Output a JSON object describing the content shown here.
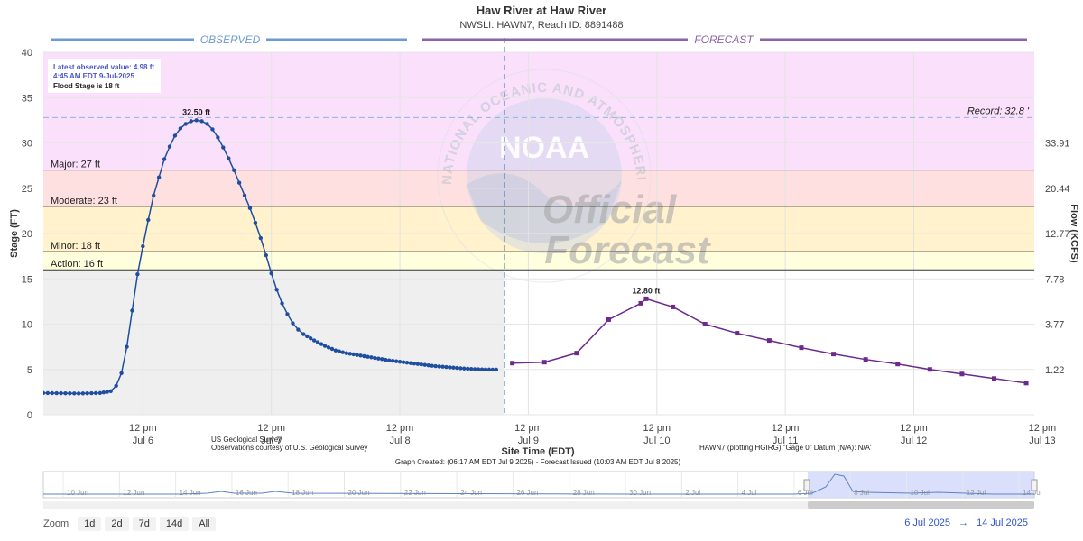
{
  "chart_data": {
    "type": "line",
    "title": "Haw River at Haw River",
    "subtitle": "NWSLI: HAWN7, Reach ID: 8891488",
    "ylabel": "Stage (FT)",
    "y2label": "Flow (KCFS)",
    "xlabel": "Site Time (EDT)",
    "ylim": [
      0,
      40
    ],
    "yticks": [
      0,
      5,
      10,
      15,
      20,
      25,
      30,
      35,
      40
    ],
    "x_range_hours": [
      -6.6,
      178.5
    ],
    "x_origin": "2025-07-06T00:00",
    "xticks": [
      {
        "hour": 12,
        "line1": "12 pm",
        "line2": "Jul 6"
      },
      {
        "hour": 36,
        "line1": "12 pm",
        "line2": "Jul 7"
      },
      {
        "hour": 60,
        "line1": "12 pm",
        "line2": "Jul 8"
      },
      {
        "hour": 84,
        "line1": "12 pm",
        "line2": "Jul 9"
      },
      {
        "hour": 108,
        "line1": "12 pm",
        "line2": "Jul 10"
      },
      {
        "hour": 132,
        "line1": "12 pm",
        "line2": "Jul 11"
      },
      {
        "hour": 156,
        "line1": "12 pm",
        "line2": "Jul 12"
      },
      {
        "hour": 180,
        "line1": "12 pm",
        "line2": "Jul 13"
      }
    ],
    "flow_ticks": [
      {
        "stage": 5,
        "label": "1.22"
      },
      {
        "stage": 10,
        "label": "3.77"
      },
      {
        "stage": 15,
        "label": "7.78"
      },
      {
        "stage": 20,
        "label": "12.77"
      },
      {
        "stage": 25,
        "label": "20.44"
      },
      {
        "stage": 30,
        "label": "33.91"
      }
    ],
    "bands": [
      {
        "name": "action-band",
        "from": 16,
        "to": 18,
        "color": "#ffffdd"
      },
      {
        "name": "minor-band",
        "from": 18,
        "to": 23,
        "color": "#fff2cc"
      },
      {
        "name": "moderate-band",
        "from": 23,
        "to": 27,
        "color": "#ffe0e0"
      },
      {
        "name": "major-band",
        "from": 27,
        "to": 40,
        "color": "#fbe0fb"
      }
    ],
    "thresholds": [
      {
        "label": "Action: 16 ft",
        "value": 16
      },
      {
        "label": "Minor: 18 ft",
        "value": 18
      },
      {
        "label": "Moderate: 23 ft",
        "value": 23
      },
      {
        "label": "Major: 27 ft",
        "value": 27
      }
    ],
    "record": {
      "label": "Record: 32.8 '",
      "value": 32.8
    },
    "now_hour": 79.5,
    "observed_label": "OBSERVED",
    "forecast_label": "FORECAST",
    "series": [
      {
        "name": "observed",
        "color": "#1f4e9e",
        "points": [
          [
            -6.6,
            2.4
          ],
          [
            0,
            2.35
          ],
          [
            4,
            2.4
          ],
          [
            6,
            2.6
          ],
          [
            7,
            3.2
          ],
          [
            8,
            4.6
          ],
          [
            9,
            7.5
          ],
          [
            10,
            11.5
          ],
          [
            11,
            15.5
          ],
          [
            12,
            18.6
          ],
          [
            13,
            21.5
          ],
          [
            14,
            24.2
          ],
          [
            15,
            26.2
          ],
          [
            16,
            28.2
          ],
          [
            17,
            29.6
          ],
          [
            18,
            30.8
          ],
          [
            19,
            31.6
          ],
          [
            20,
            32.1
          ],
          [
            21,
            32.4
          ],
          [
            22,
            32.5
          ],
          [
            23,
            32.4
          ],
          [
            24,
            32.1
          ],
          [
            25,
            31.5
          ],
          [
            26,
            30.6
          ],
          [
            27,
            29.5
          ],
          [
            28,
            28.3
          ],
          [
            29,
            27.0
          ],
          [
            30,
            25.6
          ],
          [
            31,
            24.2
          ],
          [
            32,
            22.8
          ],
          [
            33,
            21.2
          ],
          [
            34,
            19.5
          ],
          [
            35,
            17.6
          ],
          [
            36,
            15.6
          ],
          [
            37,
            13.8
          ],
          [
            38,
            12.3
          ],
          [
            39,
            11.1
          ],
          [
            40,
            10.1
          ],
          [
            41,
            9.4
          ],
          [
            42,
            8.9
          ],
          [
            44,
            8.2
          ],
          [
            46,
            7.6
          ],
          [
            48,
            7.1
          ],
          [
            50,
            6.8
          ],
          [
            52,
            6.6
          ],
          [
            54,
            6.4
          ],
          [
            56,
            6.2
          ],
          [
            58,
            6.0
          ],
          [
            60,
            5.85
          ],
          [
            62,
            5.7
          ],
          [
            64,
            5.55
          ],
          [
            66,
            5.4
          ],
          [
            68,
            5.3
          ],
          [
            70,
            5.2
          ],
          [
            72,
            5.1
          ],
          [
            74,
            5.03
          ],
          [
            76,
            4.99
          ],
          [
            78,
            4.98
          ]
        ]
      },
      {
        "name": "forecast",
        "color": "#6b2a8c",
        "points": [
          [
            81,
            5.7
          ],
          [
            87,
            5.8
          ],
          [
            93,
            6.8
          ],
          [
            99,
            10.5
          ],
          [
            105,
            12.3
          ],
          [
            106,
            12.8
          ],
          [
            111,
            11.9
          ],
          [
            117,
            10.0
          ],
          [
            123,
            9.0
          ],
          [
            129,
            8.2
          ],
          [
            135,
            7.4
          ],
          [
            141,
            6.7
          ],
          [
            147,
            6.1
          ],
          [
            153,
            5.6
          ],
          [
            159,
            5.0
          ],
          [
            165,
            4.5
          ],
          [
            171,
            4.0
          ],
          [
            177,
            3.5
          ]
        ]
      }
    ],
    "peak_labels": [
      {
        "text": "32.50 ft",
        "x": 22,
        "y": 32.5
      },
      {
        "text": "12.80 ft",
        "x": 106,
        "y": 12.8
      }
    ],
    "info_box": {
      "line1": "Latest observed value: 4.98 ft",
      "line2": "4:45 AM EDT 9-Jul-2025",
      "line3": "Flood Stage is 18 ft"
    },
    "credits": {
      "usgs1": "US Geological Survey",
      "usgs2": "Observations courtesy of U.S. Geological Survey",
      "datum": "HAWN7 (plotting HGIRG) \"Gage 0\" Datum (N/A): N/A'",
      "created": "Graph Created: (06:17 AM EDT Jul 9 2025) - Forecast Issued (10:03 AM EDT Jul 8 2025)"
    },
    "watermark": {
      "logo_text": "NOAA",
      "ring_text": "NATIONAL OCEANIC AND ATMOSPHERIC ADMINISTRATION · U.S. DEPARTMENT OF COMMERCE ·",
      "official": "Official",
      "forecast": "Forecast"
    }
  },
  "navigator": {
    "labels": [
      "10 Jun",
      "12 Jun",
      "14 Jun",
      "16 Jun",
      "18 Jun",
      "20 Jun",
      "22 Jun",
      "24 Jun",
      "26 Jun",
      "28 Jun",
      "30 Jun",
      "2 Jul",
      "4 Jul",
      "6 Jul",
      "8 Jul",
      "10 Jul",
      "12 Jul",
      "14 Jul"
    ]
  },
  "zoom": {
    "label": "Zoom",
    "buttons": [
      "1d",
      "2d",
      "7d",
      "14d",
      "All"
    ]
  },
  "range": {
    "from": "6 Jul 2025",
    "arrow": "→",
    "to": "14 Jul 2025"
  }
}
